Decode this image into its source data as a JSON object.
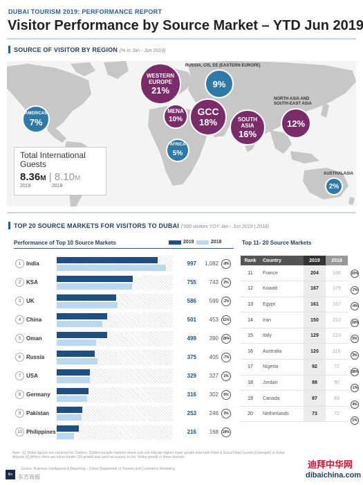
{
  "header": {
    "report_label": "DUBAI TOURISM 2019: PERFORMANCE REPORT",
    "title": "Visitor Performance by Source Market – YTD Jun 2019"
  },
  "region_section": {
    "heading": "SOURCE OF VISITOR BY REGION",
    "note": "(% in Jan - Jun 2019)",
    "regions": {
      "western_europe": {
        "name_line1": "WESTERN",
        "name_line2": "EUROPE",
        "value": "21%"
      },
      "russia": {
        "label": "RUSSIA, CIS, EE (EASTERN EUROPE)",
        "value": "9%"
      },
      "mena": {
        "name": "MENA",
        "value": "10%"
      },
      "gcc": {
        "name": "GCC",
        "value": "18%"
      },
      "south_asia": {
        "name_line1": "SOUTH",
        "name_line2": "ASIA",
        "value": "16%"
      },
      "north_asia": {
        "label_line1": "NORTH ASIA AND",
        "label_line2": "SOUTH-EAST ASIA",
        "value": "12%"
      },
      "americas": {
        "name": "AMERICAS",
        "value": "7%"
      },
      "africa": {
        "name": "AFRICA",
        "value": "5%"
      },
      "australasia": {
        "label": "AUSTRALASIA",
        "value": "2%"
      }
    },
    "total": {
      "label_line1": "Total International",
      "label_line2": "Guests",
      "value_2019": "8.36",
      "unit": "M",
      "value_2018": "8.10",
      "year_2019": "2019",
      "year_2018": "2018"
    }
  },
  "markets_section": {
    "heading": "TOP 20 SOURCE MARKETS FOR VISITORS TO DUBAI",
    "note": "('000 visitors YOY Jan - Jun 2019 | 2018)",
    "top10_title": "Performance of Top 10 Source Markets",
    "legend_2019": "2019",
    "legend_2018": "2018",
    "top11_20_title": "Top 11- 20 Source Markets",
    "col_rank": "Rank",
    "col_country": "Country",
    "col_2019": "2019",
    "col_2018": "2018"
  },
  "chart_data": {
    "type": "bar",
    "title": "Performance of Top 10 Source Markets",
    "categories": [
      "India",
      "KSA",
      "UK",
      "China",
      "Oman",
      "Russia",
      "USA",
      "Germany",
      "Pakistan",
      "Philippines"
    ],
    "ranks": [
      "1",
      "2",
      "3",
      "4",
      "5",
      "6",
      "7",
      "8",
      "9",
      "10"
    ],
    "series": [
      {
        "name": "2019",
        "values": [
          997,
          755,
          586,
          501,
          499,
          375,
          329,
          316,
          253,
          216
        ]
      },
      {
        "name": "2018",
        "values": [
          1082,
          743,
          599,
          453,
          390,
          405,
          327,
          302,
          246,
          168
        ]
      }
    ],
    "value_labels_2019": [
      "997",
      "755",
      "586",
      "501",
      "499",
      "375",
      "329",
      "316",
      "253",
      "216"
    ],
    "value_labels_2018": [
      "1,082",
      "743",
      "599",
      "453",
      "390",
      "405",
      "327",
      "302",
      "246",
      "168"
    ],
    "changes": [
      "-8%",
      "2%",
      "-2%",
      "11%",
      "28%",
      "-7%",
      "1%",
      "5%",
      "3%",
      "29%"
    ],
    "ylim": [
      0,
      1150
    ]
  },
  "top11_20": [
    {
      "rank": "11",
      "country": "France",
      "v2019": "204",
      "v2018": "186",
      "change": "10%"
    },
    {
      "rank": "12",
      "country": "Kuwait",
      "v2019": "167",
      "v2018": "179",
      "change": "-7%"
    },
    {
      "rank": "13",
      "country": "Egypt",
      "v2019": "161",
      "v2018": "167",
      "change": "-4%"
    },
    {
      "rank": "14",
      "country": "Iran",
      "v2019": "150",
      "v2018": "212",
      "change": "-30%"
    },
    {
      "rank": "15",
      "country": "Italy",
      "v2019": "129",
      "v2018": "123",
      "change": "5%"
    },
    {
      "rank": "16",
      "country": "Australia",
      "v2019": "120",
      "v2018": "116",
      "change": "3%"
    },
    {
      "rank": "17",
      "country": "Nigeria",
      "v2019": "92",
      "v2018": "72",
      "change": "28%"
    },
    {
      "rank": "18",
      "country": "Jordan",
      "v2019": "88",
      "v2018": "90",
      "change": "-1%"
    },
    {
      "rank": "19",
      "country": "Canada",
      "v2019": "87",
      "v2018": "83",
      "change": "4%"
    },
    {
      "rank": "20",
      "country": "Netherlands",
      "v2019": "73",
      "v2018": "72",
      "change": "1%"
    }
  ],
  "footer": {
    "note": "Note: (1) Visitor figures are corrected for Outliers. Outliers include markets where sub-unit indicate higher/ lower growth than both Hotel & Dubai Hotel Guests (Overnight) & Dubai Airports (2) Where there are minor border GN growth was used as a proxy to est. Visitor growth in these markets",
    "source": "Source: Business Intelligence & Reporting – Dubai Department of Tourism and Commerce Marketing",
    "logo": "tbc",
    "logo_text": "东方商报",
    "watermark_cn": "迪拜中华网",
    "watermark_en": "dibaichina.com"
  },
  "colors": {
    "bar_2019": "#1e4f7f",
    "bar_2018": "#bcd8ef",
    "bubble_purple": "#7a2b68",
    "bubble_blue": "#2f79a6"
  }
}
